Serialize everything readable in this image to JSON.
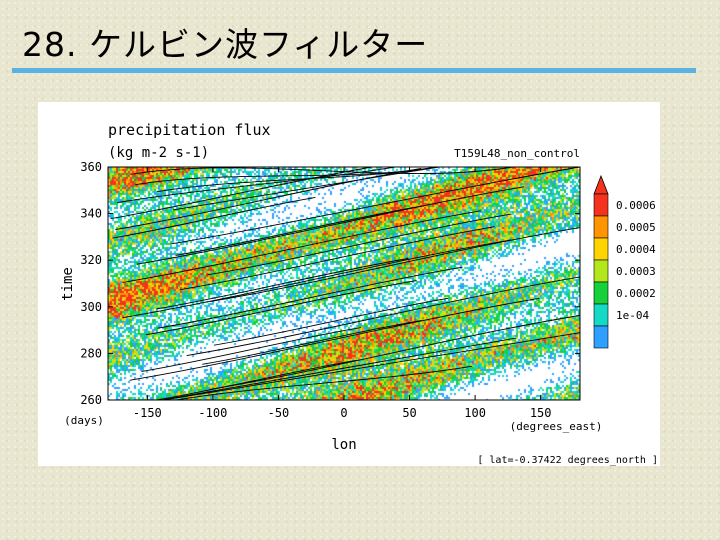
{
  "slide": {
    "title": "28. ケルビン波フィルター"
  },
  "chart_data": {
    "type": "heatmap",
    "title": "precipitation flux",
    "units": "(kg m-2 s-1)",
    "run_label": "T159L48_non_control",
    "xlabel": "lon",
    "ylabel": "time",
    "x_units": "(degrees_east)",
    "y_units": "(days)",
    "footnote": "[ lat=-0.37422 degrees_north ]",
    "xlim": [
      -180,
      180
    ],
    "ylim": [
      260,
      360
    ],
    "x_ticks": [
      -150,
      -100,
      -50,
      0,
      50,
      100,
      150
    ],
    "x_tick_labels": [
      "-150",
      "-100",
      "-50",
      "0",
      "50",
      "100",
      "150"
    ],
    "y_ticks": [
      260,
      280,
      300,
      320,
      340,
      360
    ],
    "y_tick_labels": [
      "260",
      "280",
      "300",
      "320",
      "340",
      "360"
    ],
    "colorbar": {
      "levels": [
        0.0001,
        0.0002,
        0.0003,
        0.0004,
        0.0005,
        0.0006
      ],
      "labels": [
        "1e-04",
        "0.0002",
        "0.0003",
        "0.0004",
        "0.0005",
        "0.0006"
      ],
      "colors": [
        "#2fa0ff",
        "#13d9c5",
        "#16d13a",
        "#b4e61c",
        "#ffd400",
        "#ff9500",
        "#f4321e"
      ]
    },
    "overlay": "black contour lines of Kelvin-wave filtered precipitation (eastward propagating)"
  }
}
